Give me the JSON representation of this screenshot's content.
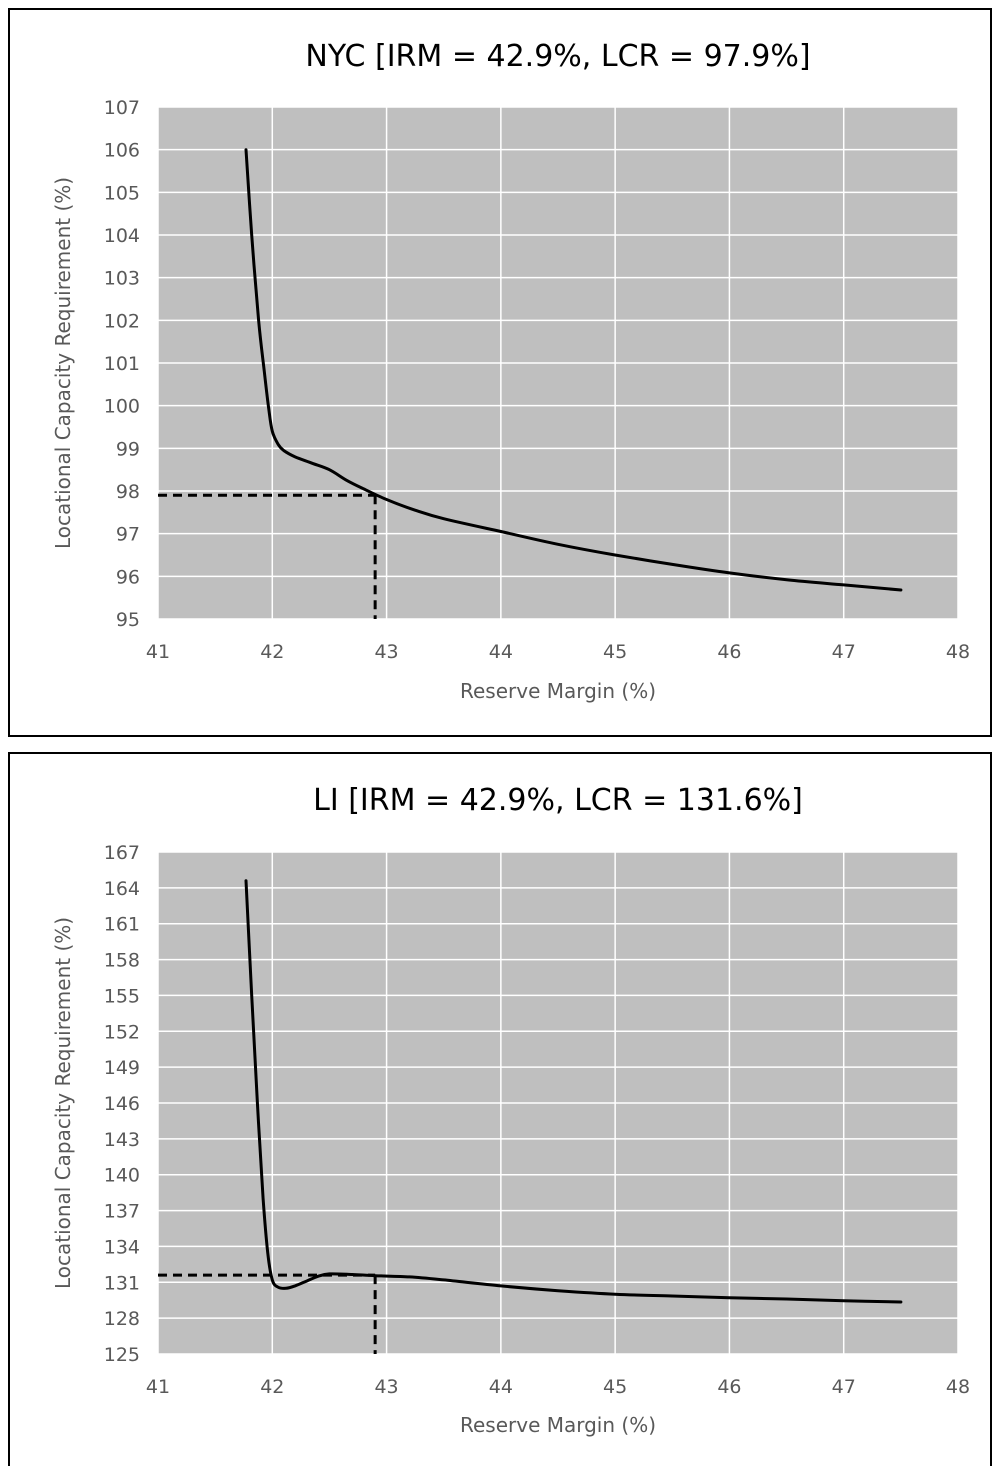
{
  "chart_data": [
    {
      "type": "line",
      "title": "NYC [IRM = 42.9%, LCR = 97.9%]",
      "xlabel": "Reserve Margin (%)",
      "ylabel": "Locational Capacity Requirement (%)",
      "xlim": [
        41,
        48
      ],
      "ylim": [
        95,
        107
      ],
      "x_ticks": [
        "41",
        "42",
        "43",
        "44",
        "45",
        "46",
        "47",
        "48"
      ],
      "y_ticks": [
        "95",
        "96",
        "97",
        "98",
        "99",
        "100",
        "101",
        "102",
        "103",
        "104",
        "105",
        "106",
        "107"
      ],
      "grid": true,
      "plot_background": "#bfbfbf",
      "grid_color": "#ffffff",
      "line_color": "#000000",
      "series": [
        {
          "x": [
            41.77,
            41.82,
            41.88,
            41.93,
            41.97,
            42.0,
            42.05,
            42.1,
            42.2,
            42.35,
            42.5,
            42.65,
            42.8,
            43.0,
            43.25,
            43.5,
            44.0,
            44.5,
            45.0,
            45.5,
            46.0,
            46.5,
            47.0,
            47.5
          ],
          "y": [
            106.0,
            104.0,
            102.0,
            100.8,
            99.9,
            99.4,
            99.1,
            98.95,
            98.8,
            98.65,
            98.5,
            98.25,
            98.05,
            97.8,
            97.55,
            97.35,
            97.05,
            96.75,
            96.5,
            96.28,
            96.08,
            95.92,
            95.8,
            95.68
          ]
        }
      ],
      "reference_point": {
        "x": 42.9,
        "y": 97.9
      }
    },
    {
      "type": "line",
      "title": "LI [IRM = 42.9%, LCR = 131.6%]",
      "xlabel": "Reserve Margin (%)",
      "ylabel": "Locational Capacity Requirement (%)",
      "xlim": [
        41,
        48
      ],
      "ylim": [
        125,
        167
      ],
      "x_ticks": [
        "41",
        "42",
        "43",
        "44",
        "45",
        "46",
        "47",
        "48"
      ],
      "y_ticks": [
        "125",
        "128",
        "131",
        "134",
        "137",
        "140",
        "143",
        "146",
        "149",
        "152",
        "155",
        "158",
        "161",
        "164",
        "167"
      ],
      "grid": true,
      "plot_background": "#bfbfbf",
      "grid_color": "#ffffff",
      "line_color": "#000000",
      "series": [
        {
          "x": [
            41.77,
            41.82,
            41.87,
            41.92,
            41.96,
            42.0,
            42.05,
            42.12,
            42.2,
            42.3,
            42.4,
            42.5,
            42.7,
            42.9,
            43.2,
            43.5,
            44.0,
            44.5,
            45.0,
            45.5,
            46.0,
            46.5,
            47.0,
            47.5
          ],
          "y": [
            164.6,
            155.0,
            146.0,
            138.0,
            133.5,
            131.2,
            130.6,
            130.5,
            130.7,
            131.1,
            131.5,
            131.7,
            131.65,
            131.55,
            131.45,
            131.2,
            130.7,
            130.3,
            130.0,
            129.85,
            129.7,
            129.6,
            129.45,
            129.35
          ]
        }
      ],
      "reference_point": {
        "x": 42.9,
        "y": 131.6
      }
    }
  ]
}
